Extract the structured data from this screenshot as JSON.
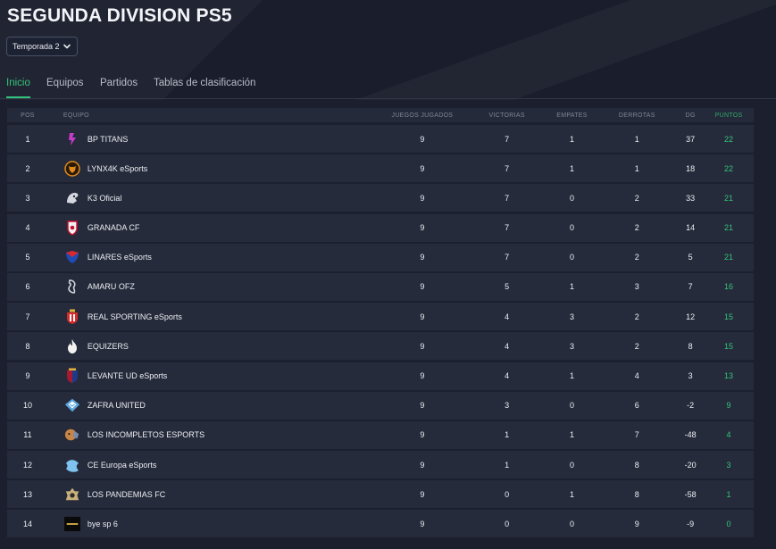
{
  "page": {
    "title": "SEGUNDA DIVISION PS5"
  },
  "season": {
    "selected": "Temporada 2"
  },
  "tabs": [
    {
      "label": "Inicio",
      "active": true
    },
    {
      "label": "Equipos",
      "active": false
    },
    {
      "label": "Partidos",
      "active": false
    },
    {
      "label": "Tablas de clasificación",
      "active": false
    }
  ],
  "table": {
    "headers": {
      "pos": "POS",
      "team": "EQUIPO",
      "played": "JUEGOS JUGADOS",
      "wins": "VICTORIAS",
      "draws": "EMPATES",
      "losses": "DERROTAS",
      "gd": "DG",
      "points": "PUNTOS"
    },
    "rows": [
      {
        "pos": "1",
        "team": "BP TITANS",
        "logo": "bp-titans-logo",
        "played": "9",
        "wins": "7",
        "draws": "1",
        "losses": "1",
        "gd": "37",
        "points": "22"
      },
      {
        "pos": "2",
        "team": "LYNX4K eSports",
        "logo": "lynx4k-logo",
        "played": "9",
        "wins": "7",
        "draws": "1",
        "losses": "1",
        "gd": "18",
        "points": "22"
      },
      {
        "pos": "3",
        "team": "K3 Oficial",
        "logo": "k3-logo",
        "played": "9",
        "wins": "7",
        "draws": "0",
        "losses": "2",
        "gd": "33",
        "points": "21"
      },
      {
        "pos": "4",
        "team": "GRANADA CF",
        "logo": "granada-logo",
        "played": "9",
        "wins": "7",
        "draws": "0",
        "losses": "2",
        "gd": "14",
        "points": "21"
      },
      {
        "pos": "5",
        "team": "LINARES eSports",
        "logo": "linares-logo",
        "played": "9",
        "wins": "7",
        "draws": "0",
        "losses": "2",
        "gd": "5",
        "points": "21"
      },
      {
        "pos": "6",
        "team": "AMARU OFZ",
        "logo": "amaru-logo",
        "played": "9",
        "wins": "5",
        "draws": "1",
        "losses": "3",
        "gd": "7",
        "points": "16"
      },
      {
        "pos": "7",
        "team": "REAL SPORTING eSports",
        "logo": "real-sporting-logo",
        "played": "9",
        "wins": "4",
        "draws": "3",
        "losses": "2",
        "gd": "12",
        "points": "15"
      },
      {
        "pos": "8",
        "team": "EQUIZERS",
        "logo": "equizers-logo",
        "played": "9",
        "wins": "4",
        "draws": "3",
        "losses": "2",
        "gd": "8",
        "points": "15"
      },
      {
        "pos": "9",
        "team": "LEVANTE UD eSports",
        "logo": "levante-logo",
        "played": "9",
        "wins": "4",
        "draws": "1",
        "losses": "4",
        "gd": "3",
        "points": "13"
      },
      {
        "pos": "10",
        "team": "ZAFRA UNITED",
        "logo": "zafra-logo",
        "played": "9",
        "wins": "3",
        "draws": "0",
        "losses": "6",
        "gd": "-2",
        "points": "9"
      },
      {
        "pos": "11",
        "team": "LOS INCOMPLETOS ESPORTS",
        "logo": "incompletos-logo",
        "played": "9",
        "wins": "1",
        "draws": "1",
        "losses": "7",
        "gd": "-48",
        "points": "4"
      },
      {
        "pos": "12",
        "team": "CE Europa eSports",
        "logo": "ce-europa-logo",
        "played": "9",
        "wins": "1",
        "draws": "0",
        "losses": "8",
        "gd": "-20",
        "points": "3"
      },
      {
        "pos": "13",
        "team": "LOS PANDEMIAS FC",
        "logo": "pandemias-logo",
        "played": "9",
        "wins": "0",
        "draws": "1",
        "losses": "8",
        "gd": "-58",
        "points": "1"
      },
      {
        "pos": "14",
        "team": "bye sp 6",
        "logo": "bye-logo",
        "played": "9",
        "wins": "0",
        "draws": "0",
        "losses": "9",
        "gd": "-9",
        "points": "0"
      }
    ]
  },
  "colors": {
    "accent": "#33c37a",
    "background": "#1b1f2e",
    "row": "#262b3b"
  }
}
